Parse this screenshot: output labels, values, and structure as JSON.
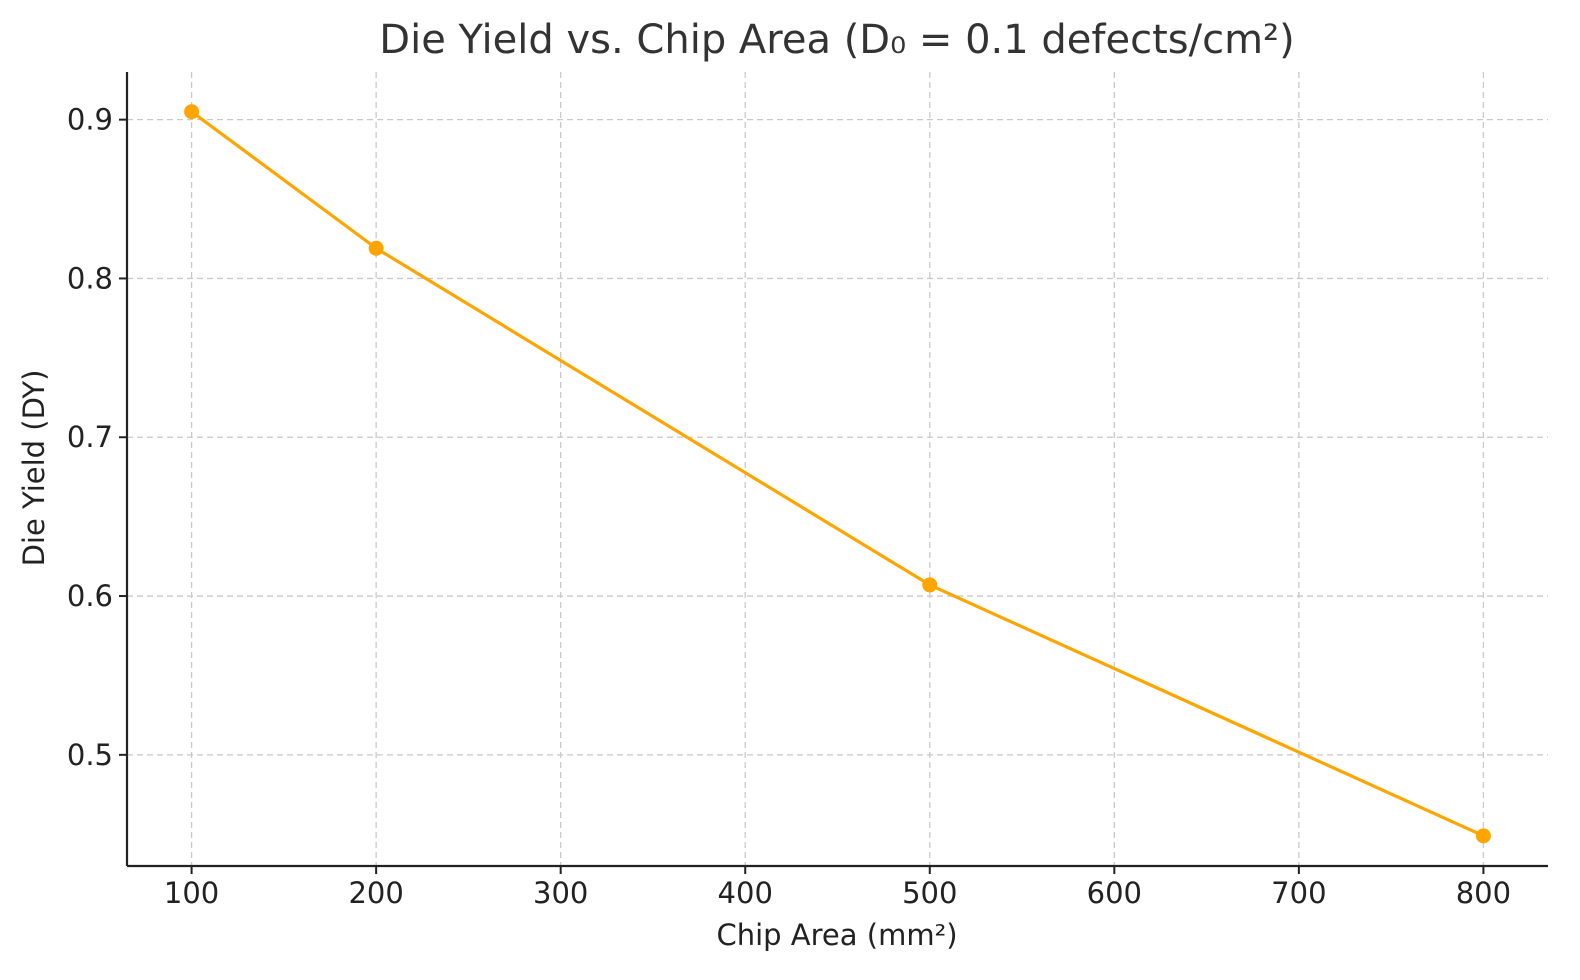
{
  "chart_data": {
    "type": "line",
    "title": "Die Yield vs. Chip Area (D₀ = 0.1 defects/cm²)",
    "xlabel": "Chip Area (mm²)",
    "ylabel": "Die Yield (DY)",
    "x_ticks": [
      "100",
      "200",
      "300",
      "400",
      "500",
      "600",
      "700",
      "800"
    ],
    "y_ticks": [
      "0.5",
      "0.6",
      "0.7",
      "0.8",
      "0.9"
    ],
    "xlim": [
      65,
      835
    ],
    "ylim": [
      0.43,
      0.93
    ],
    "grid": true,
    "series": [
      {
        "color": "#FFA500",
        "marker": "circle",
        "x": [
          100,
          200,
          500,
          800
        ],
        "y": [
          0.905,
          0.819,
          0.607,
          0.449
        ]
      }
    ]
  }
}
